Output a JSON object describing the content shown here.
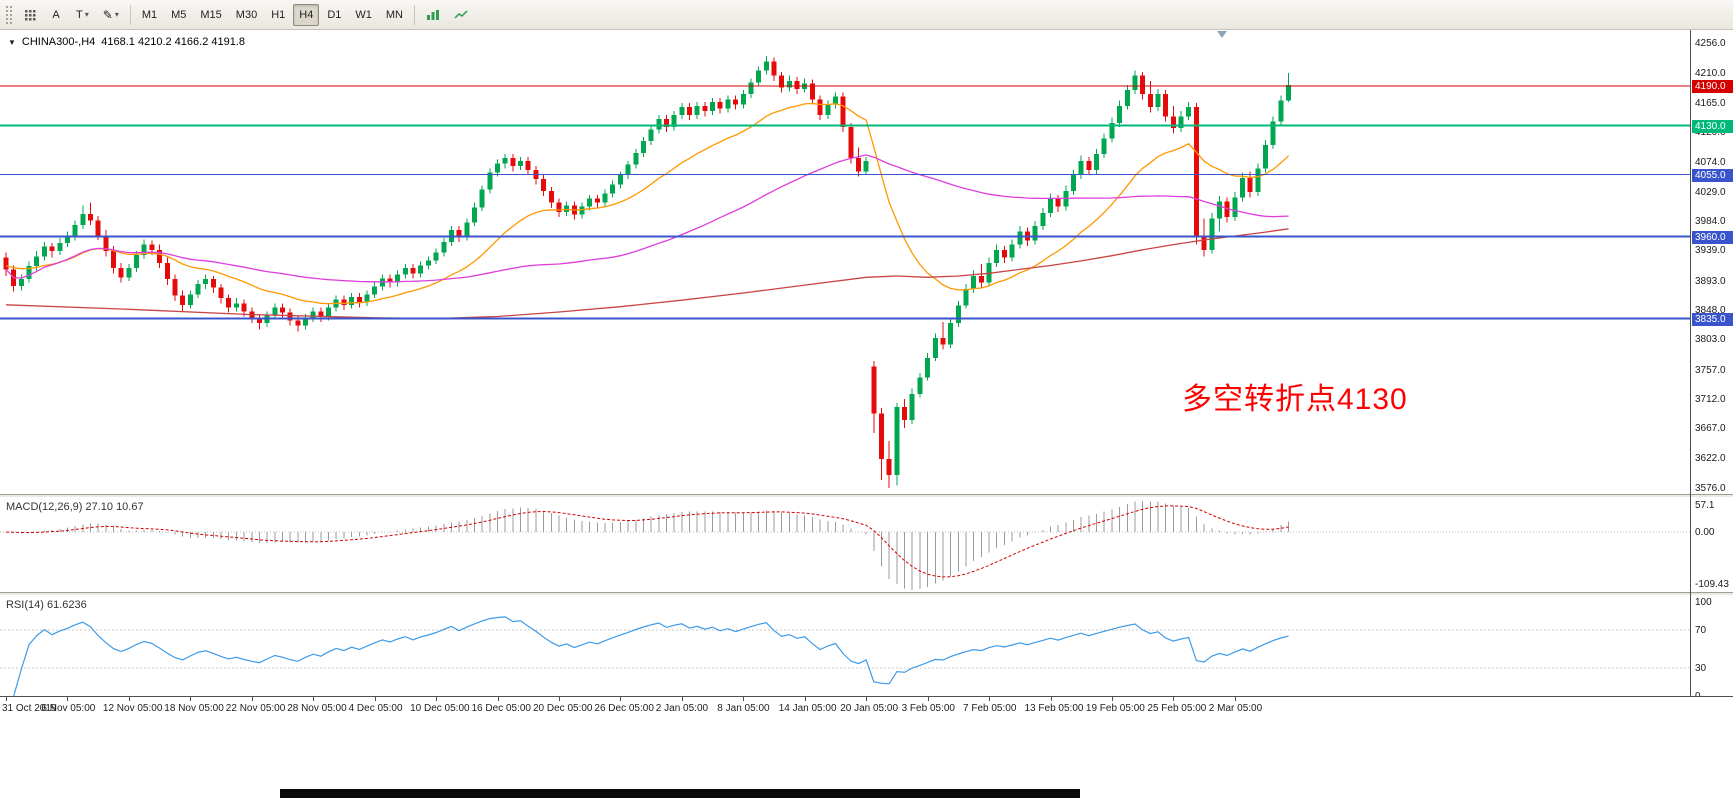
{
  "toolbar": {
    "cursor_label": "A",
    "text_label": "T",
    "timeframes": [
      "M1",
      "M5",
      "M15",
      "M30",
      "H1",
      "H4",
      "D1",
      "W1",
      "MN"
    ],
    "active_timeframe": "H4"
  },
  "chart": {
    "symbol": "CHINA300-,H4",
    "ohlc": "4168.1 4210.2 4166.2 4191.8",
    "annotation": {
      "text": "多空转折点4130",
      "color": "#ff0000"
    },
    "y_ticks": [
      "4256.0",
      "4210.0",
      "4165.0",
      "4120.0",
      "4074.0",
      "4029.0",
      "3984.0",
      "3939.0",
      "3893.0",
      "3848.0",
      "3803.0",
      "3757.0",
      "3712.0",
      "3667.0",
      "3622.0",
      "3576.0"
    ]
  },
  "macd": {
    "label": "MACD(12,26,9)",
    "values": "27.10 10.67",
    "ticks": [
      {
        "v": 57.1,
        "label": "57.1"
      },
      {
        "v": 0,
        "label": "0.00"
      },
      {
        "v": -109.43,
        "label": "-109.43"
      }
    ]
  },
  "rsi": {
    "label": "RSI(14)",
    "value": "61.6236",
    "ticks": [
      {
        "v": 100,
        "label": "100"
      },
      {
        "v": 70,
        "label": "70"
      },
      {
        "v": 30,
        "label": "30"
      },
      {
        "v": 0,
        "label": "0"
      }
    ],
    "levels": [
      70,
      30
    ]
  },
  "chart_data": {
    "type": "candlestick",
    "symbol": "CHINA300-",
    "timeframe": "H4",
    "title": "CHINA300-,H4  4168.1 4210.2 4166.2 4191.8",
    "ylim": [
      3576,
      4256
    ],
    "grid": false,
    "x_labels": [
      "31 Oct 2019",
      "6 Nov 05:00",
      "12 Nov 05:00",
      "18 Nov 05:00",
      "22 Nov 05:00",
      "28 Nov 05:00",
      "4 Dec 05:00",
      "10 Dec 05:00",
      "16 Dec 05:00",
      "20 Dec 05:00",
      "26 Dec 05:00",
      "2 Jan 05:00",
      "8 Jan 05:00",
      "14 Jan 05:00",
      "20 Jan 05:00",
      "3 Feb 05:00",
      "7 Feb 05:00",
      "13 Feb 05:00",
      "19 Feb 05:00",
      "25 Feb 05:00",
      "2 Mar 05:00"
    ],
    "colors": {
      "bull": "#00a650",
      "bear": "#e50b0b",
      "macd_hist": "#9b9b9b",
      "macd_signal": "#d40000",
      "rsi_line": "#3d9be9"
    },
    "candles": [
      [
        3928,
        3936,
        3900,
        3910
      ],
      [
        3910,
        3916,
        3876,
        3885
      ],
      [
        3885,
        3902,
        3878,
        3895
      ],
      [
        3895,
        3922,
        3890,
        3915
      ],
      [
        3915,
        3938,
        3908,
        3930
      ],
      [
        3930,
        3952,
        3924,
        3945
      ],
      [
        3945,
        3950,
        3928,
        3938
      ],
      [
        3938,
        3958,
        3932,
        3950
      ],
      [
        3950,
        3968,
        3944,
        3960
      ],
      [
        3960,
        3985,
        3954,
        3978
      ],
      [
        3978,
        4008,
        3972,
        3995
      ],
      [
        3995,
        4012,
        3978,
        3985
      ],
      [
        3985,
        3992,
        3955,
        3962
      ],
      [
        3962,
        3970,
        3930,
        3938
      ],
      [
        3938,
        3946,
        3904,
        3912
      ],
      [
        3912,
        3920,
        3890,
        3898
      ],
      [
        3898,
        3918,
        3892,
        3912
      ],
      [
        3912,
        3938,
        3906,
        3932
      ],
      [
        3932,
        3956,
        3926,
        3948
      ],
      [
        3948,
        3954,
        3932,
        3940
      ],
      [
        3940,
        3948,
        3912,
        3920
      ],
      [
        3920,
        3928,
        3886,
        3895
      ],
      [
        3895,
        3902,
        3862,
        3870
      ],
      [
        3870,
        3878,
        3846,
        3856
      ],
      [
        3856,
        3878,
        3850,
        3872
      ],
      [
        3872,
        3894,
        3866,
        3888
      ],
      [
        3888,
        3902,
        3880,
        3895
      ],
      [
        3895,
        3900,
        3874,
        3882
      ],
      [
        3882,
        3888,
        3858,
        3866
      ],
      [
        3866,
        3872,
        3844,
        3852
      ],
      [
        3852,
        3866,
        3846,
        3858
      ],
      [
        3858,
        3864,
        3838,
        3846
      ],
      [
        3846,
        3852,
        3828,
        3836
      ],
      [
        3836,
        3842,
        3818,
        3828
      ],
      [
        3828,
        3846,
        3822,
        3840
      ],
      [
        3840,
        3858,
        3834,
        3852
      ],
      [
        3852,
        3858,
        3836,
        3844
      ],
      [
        3844,
        3850,
        3824,
        3832
      ],
      [
        3832,
        3838,
        3815,
        3824
      ],
      [
        3824,
        3842,
        3818,
        3836
      ],
      [
        3836,
        3852,
        3830,
        3846
      ],
      [
        3846,
        3852,
        3830,
        3838
      ],
      [
        3838,
        3858,
        3832,
        3852
      ],
      [
        3852,
        3870,
        3846,
        3864
      ],
      [
        3864,
        3870,
        3848,
        3856
      ],
      [
        3856,
        3874,
        3850,
        3868
      ],
      [
        3868,
        3874,
        3852,
        3860
      ],
      [
        3860,
        3878,
        3854,
        3872
      ],
      [
        3872,
        3890,
        3866,
        3884
      ],
      [
        3884,
        3902,
        3878,
        3896
      ],
      [
        3896,
        3902,
        3882,
        3890
      ],
      [
        3890,
        3908,
        3884,
        3902
      ],
      [
        3902,
        3918,
        3896,
        3912
      ],
      [
        3912,
        3918,
        3896,
        3904
      ],
      [
        3904,
        3922,
        3898,
        3916
      ],
      [
        3916,
        3930,
        3910,
        3924
      ],
      [
        3924,
        3942,
        3918,
        3936
      ],
      [
        3936,
        3958,
        3930,
        3952
      ],
      [
        3952,
        3976,
        3946,
        3970
      ],
      [
        3970,
        3976,
        3952,
        3960
      ],
      [
        3960,
        3988,
        3954,
        3982
      ],
      [
        3982,
        4012,
        3976,
        4005
      ],
      [
        4005,
        4038,
        3999,
        4032
      ],
      [
        4032,
        4064,
        4026,
        4058
      ],
      [
        4058,
        4078,
        4052,
        4072
      ],
      [
        4072,
        4086,
        4064,
        4080
      ],
      [
        4080,
        4086,
        4060,
        4068
      ],
      [
        4068,
        4082,
        4062,
        4076
      ],
      [
        4076,
        4082,
        4054,
        4062
      ],
      [
        4062,
        4068,
        4040,
        4048
      ],
      [
        4048,
        4054,
        4022,
        4030
      ],
      [
        4030,
        4036,
        4004,
        4012
      ],
      [
        4012,
        4018,
        3990,
        3998
      ],
      [
        3998,
        4014,
        3992,
        4008
      ],
      [
        4008,
        4014,
        3986,
        3994
      ],
      [
        3994,
        4012,
        3988,
        4006
      ],
      [
        4006,
        4024,
        4000,
        4018
      ],
      [
        4018,
        4024,
        4004,
        4012
      ],
      [
        4012,
        4032,
        4006,
        4026
      ],
      [
        4026,
        4046,
        4020,
        4040
      ],
      [
        4040,
        4060,
        4034,
        4054
      ],
      [
        4054,
        4076,
        4048,
        4070
      ],
      [
        4070,
        4094,
        4064,
        4088
      ],
      [
        4088,
        4112,
        4082,
        4106
      ],
      [
        4106,
        4130,
        4100,
        4124
      ],
      [
        4124,
        4146,
        4118,
        4140
      ],
      [
        4140,
        4146,
        4120,
        4128
      ],
      [
        4128,
        4152,
        4122,
        4146
      ],
      [
        4146,
        4164,
        4140,
        4158
      ],
      [
        4158,
        4164,
        4138,
        4146
      ],
      [
        4146,
        4166,
        4140,
        4160
      ],
      [
        4160,
        4166,
        4144,
        4152
      ],
      [
        4152,
        4172,
        4146,
        4166
      ],
      [
        4166,
        4172,
        4148,
        4156
      ],
      [
        4156,
        4176,
        4150,
        4170
      ],
      [
        4170,
        4176,
        4154,
        4162
      ],
      [
        4162,
        4184,
        4156,
        4178
      ],
      [
        4178,
        4202,
        4172,
        4196
      ],
      [
        4196,
        4220,
        4190,
        4214
      ],
      [
        4214,
        4236,
        4208,
        4228
      ],
      [
        4228,
        4234,
        4198,
        4206
      ],
      [
        4206,
        4212,
        4180,
        4188
      ],
      [
        4188,
        4206,
        4182,
        4198
      ],
      [
        4198,
        4204,
        4178,
        4186
      ],
      [
        4186,
        4202,
        4180,
        4194
      ],
      [
        4194,
        4200,
        4162,
        4170
      ],
      [
        4170,
        4176,
        4138,
        4146
      ],
      [
        4146,
        4168,
        4140,
        4162
      ],
      [
        4162,
        4180,
        4156,
        4174
      ],
      [
        4174,
        4180,
        4120,
        4128
      ],
      [
        4128,
        4134,
        4072,
        4080
      ],
      [
        4080,
        4096,
        4052,
        4060
      ],
      [
        4060,
        4082,
        4054,
        4076
      ],
      [
        3762,
        3770,
        3660,
        3690
      ],
      [
        3690,
        3698,
        3588,
        3620
      ],
      [
        3620,
        3648,
        3576,
        3596
      ],
      [
        3596,
        3706,
        3580,
        3700
      ],
      [
        3700,
        3712,
        3668,
        3680
      ],
      [
        3680,
        3728,
        3674,
        3720
      ],
      [
        3720,
        3752,
        3714,
        3745
      ],
      [
        3745,
        3782,
        3740,
        3775
      ],
      [
        3775,
        3812,
        3770,
        3805
      ],
      [
        3805,
        3830,
        3788,
        3795
      ],
      [
        3795,
        3835,
        3790,
        3828
      ],
      [
        3828,
        3862,
        3822,
        3855
      ],
      [
        3855,
        3888,
        3850,
        3880
      ],
      [
        3880,
        3908,
        3874,
        3900
      ],
      [
        3900,
        3918,
        3882,
        3890
      ],
      [
        3890,
        3928,
        3886,
        3920
      ],
      [
        3920,
        3948,
        3914,
        3940
      ],
      [
        3940,
        3946,
        3920,
        3928
      ],
      [
        3928,
        3956,
        3922,
        3948
      ],
      [
        3948,
        3976,
        3942,
        3968
      ],
      [
        3968,
        3974,
        3946,
        3954
      ],
      [
        3954,
        3984,
        3948,
        3976
      ],
      [
        3976,
        4004,
        3970,
        3996
      ],
      [
        3996,
        4026,
        3990,
        4018
      ],
      [
        4018,
        4024,
        3998,
        4006
      ],
      [
        4006,
        4038,
        4000,
        4030
      ],
      [
        4030,
        4062,
        4024,
        4054
      ],
      [
        4054,
        4084,
        4048,
        4076
      ],
      [
        4076,
        4082,
        4054,
        4062
      ],
      [
        4062,
        4094,
        4056,
        4086
      ],
      [
        4086,
        4118,
        4080,
        4110
      ],
      [
        4110,
        4142,
        4104,
        4134
      ],
      [
        4134,
        4168,
        4128,
        4160
      ],
      [
        4160,
        4192,
        4154,
        4184
      ],
      [
        4184,
        4214,
        4178,
        4206
      ],
      [
        4206,
        4212,
        4170,
        4178
      ],
      [
        4178,
        4198,
        4150,
        4158
      ],
      [
        4158,
        4186,
        4152,
        4178
      ],
      [
        4178,
        4184,
        4136,
        4144
      ],
      [
        4144,
        4160,
        4118,
        4126
      ],
      [
        4126,
        4152,
        4120,
        4144
      ],
      [
        4144,
        4166,
        4138,
        4158
      ],
      [
        4158,
        4164,
        3948,
        3960
      ],
      [
        3960,
        3988,
        3930,
        3940
      ],
      [
        3940,
        3996,
        3934,
        3988
      ],
      [
        3988,
        4022,
        3968,
        4014
      ],
      [
        4014,
        4020,
        3982,
        3990
      ],
      [
        3990,
        4028,
        3984,
        4020
      ],
      [
        4020,
        4058,
        4014,
        4050
      ],
      [
        4050,
        4060,
        4020,
        4028
      ],
      [
        4028,
        4072,
        4022,
        4064
      ],
      [
        4064,
        4108,
        4058,
        4100
      ],
      [
        4100,
        4144,
        4094,
        4136
      ],
      [
        4136,
        4176,
        4130,
        4168
      ],
      [
        4168.1,
        4210.2,
        4166.2,
        4191.8
      ]
    ],
    "overlays": [
      {
        "name": "ma-fast",
        "type": "ema",
        "period": 21,
        "seed": 3916,
        "color": "#ff9800"
      },
      {
        "name": "ma-mid",
        "type": "sma",
        "period": 60,
        "color": "#dd3fdd"
      },
      {
        "name": "ma-slow",
        "type": "points",
        "color": "#c94444",
        "points": [
          [
            0,
            3856
          ],
          [
            16,
            3849
          ],
          [
            32,
            3841
          ],
          [
            48,
            3836
          ],
          [
            56,
            3835
          ],
          [
            64,
            3838
          ],
          [
            72,
            3845
          ],
          [
            80,
            3853
          ],
          [
            88,
            3863
          ],
          [
            96,
            3874
          ],
          [
            104,
            3886
          ],
          [
            112,
            3898
          ],
          [
            116,
            3900
          ],
          [
            120,
            3898
          ],
          [
            124,
            3900
          ],
          [
            128,
            3904
          ],
          [
            132,
            3910
          ],
          [
            136,
            3916
          ],
          [
            140,
            3923
          ],
          [
            144,
            3931
          ],
          [
            148,
            3940
          ],
          [
            152,
            3948
          ],
          [
            156,
            3955
          ],
          [
            160,
            3961
          ],
          [
            164,
            3967
          ],
          [
            167,
            3972
          ]
        ]
      }
    ],
    "hlines": [
      {
        "price": 4190.0,
        "label": "4190.0",
        "color": "#d40000",
        "width": 1
      },
      {
        "price": 4130.0,
        "label": "4130.0",
        "color": "#00b87a",
        "width": 2
      },
      {
        "price": 4055.0,
        "label": "4055.0",
        "color": "#3a55cc",
        "width": 1
      },
      {
        "price": 3960.0,
        "label": "3960.0",
        "color": "#3a55cc",
        "width": 2
      },
      {
        "price": 3835.0,
        "label": "3835.0",
        "color": "#3a55cc",
        "width": 2
      }
    ],
    "indicators": [
      {
        "name": "MACD",
        "params": [
          12,
          26,
          9
        ],
        "current_values": [
          27.1,
          10.67
        ],
        "range": [
          -109.43,
          57.1
        ]
      },
      {
        "name": "RSI",
        "params": [
          14
        ],
        "current_value": 61.6236,
        "range": [
          0,
          100
        ],
        "levels": [
          70,
          30
        ]
      }
    ]
  }
}
